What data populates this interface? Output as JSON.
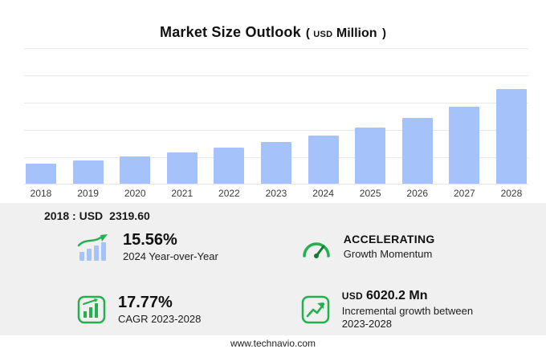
{
  "title": {
    "main": "Market Size Outlook",
    "paren_open": "(",
    "unit_small": "USD",
    "unit_main": "Million",
    "paren_close": ")"
  },
  "chart_data": {
    "type": "bar",
    "title": "Market Size Outlook (USD Million)",
    "categories": [
      "2018",
      "2019",
      "2020",
      "2021",
      "2022",
      "2023",
      "2024",
      "2025",
      "2026",
      "2027",
      "2028"
    ],
    "values": [
      2319.6,
      2660,
      3060,
      3530,
      4090,
      4756,
      5497,
      6390,
      7460,
      8760,
      10776.6
    ],
    "series_name": "Market Size (USD Million)",
    "xlabel": "",
    "ylabel": "",
    "ylim": [
      0,
      12000
    ],
    "grid": true,
    "legend": "none",
    "bar_color": "#a5c3fa"
  },
  "annotation": {
    "label": "2018 : USD",
    "value": "2319.60"
  },
  "stats": [
    {
      "icon": "growth-arrow-icon",
      "value": "15.56%",
      "label": "2024 Year-over-Year"
    },
    {
      "icon": "speedometer-icon",
      "value": "ACCELERATING",
      "label": "Growth Momentum"
    },
    {
      "icon": "bar-chart-badge-icon",
      "value": "17.77%",
      "label": "CAGR 2023-2028"
    },
    {
      "icon": "line-chart-badge-icon",
      "prefix": "USD",
      "value": "6020.2 Mn",
      "label": "Incremental growth between 2023-2028"
    }
  ],
  "footer": {
    "url": "www.technavio.com"
  },
  "colors": {
    "bar": "#a5c3fa",
    "accent_green": "#23b14d",
    "grid": "#e8e8e8",
    "panel_bg": "#f0f0f0"
  }
}
